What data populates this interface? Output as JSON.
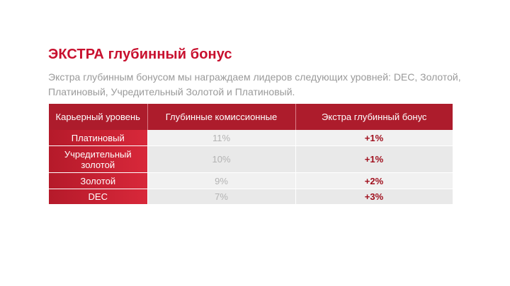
{
  "title": "ЭКСТРА глубинный бонус",
  "description": "Экстра глубинным бонусом мы награждаем лидеров следующих уровней: DEC, Золотой, Платиновый, Учредительный Золотой и Платиновый.",
  "table": {
    "headers": [
      "Карьерный уровень",
      "Глубинные комиссионные",
      "Экстра глубинный бонус"
    ],
    "rows": [
      {
        "level": "Платиновый",
        "depth_commission": "11%",
        "extra_bonus": "+1%"
      },
      {
        "level": "Учредительный золотой",
        "depth_commission": "10%",
        "extra_bonus": "+1%"
      },
      {
        "level": "Золотой",
        "depth_commission": "9%",
        "extra_bonus": "+2%"
      },
      {
        "level": "DEC",
        "depth_commission": "7%",
        "extra_bonus": "+3%"
      }
    ]
  },
  "colors": {
    "accent": "#c8102e",
    "header_bg": "#ad1c2c",
    "bonus_text": "#a0101e"
  }
}
